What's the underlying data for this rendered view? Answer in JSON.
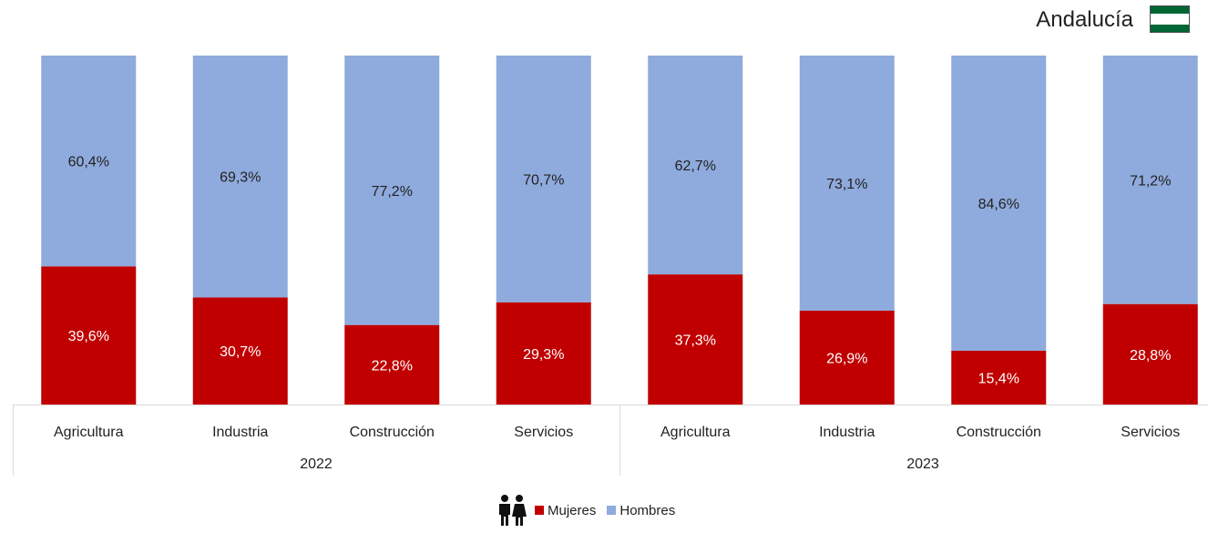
{
  "region": {
    "name": "Andalucía",
    "flag_icon": "andalucia-flag-icon",
    "flag_colors": [
      "#006633",
      "#ffffff",
      "#006633"
    ]
  },
  "legend": {
    "icon": "people-icon",
    "items": [
      {
        "label": "Mujeres",
        "color": "#c00000"
      },
      {
        "label": "Hombres",
        "color": "#8faadc"
      }
    ]
  },
  "chart_data": {
    "type": "bar",
    "stacked": true,
    "percent": true,
    "groups": [
      {
        "label": "2022",
        "categories": [
          "Agricultura",
          "Industria",
          "Construcción",
          "Servicios"
        ]
      },
      {
        "label": "2023",
        "categories": [
          "Agricultura",
          "Industria",
          "Construcción",
          "Servicios"
        ]
      }
    ],
    "series": [
      {
        "name": "Mujeres",
        "color": "#c00000",
        "values": [
          39.6,
          30.7,
          22.8,
          29.3,
          37.3,
          26.9,
          15.4,
          28.8
        ],
        "labels": [
          "39,6%",
          "30,7%",
          "22,8%",
          "29,3%",
          "37,3%",
          "26,9%",
          "15,4%",
          "28,8%"
        ]
      },
      {
        "name": "Hombres",
        "color": "#8faadc",
        "values": [
          60.4,
          69.3,
          77.2,
          70.7,
          62.7,
          73.1,
          84.6,
          71.2
        ],
        "labels": [
          "60,4%",
          "69,3%",
          "77,2%",
          "70,7%",
          "62,7%",
          "73,1%",
          "84,6%",
          "71,2%"
        ]
      }
    ],
    "ylim": [
      0,
      100
    ],
    "grid": false,
    "legend_position": "bottom"
  }
}
